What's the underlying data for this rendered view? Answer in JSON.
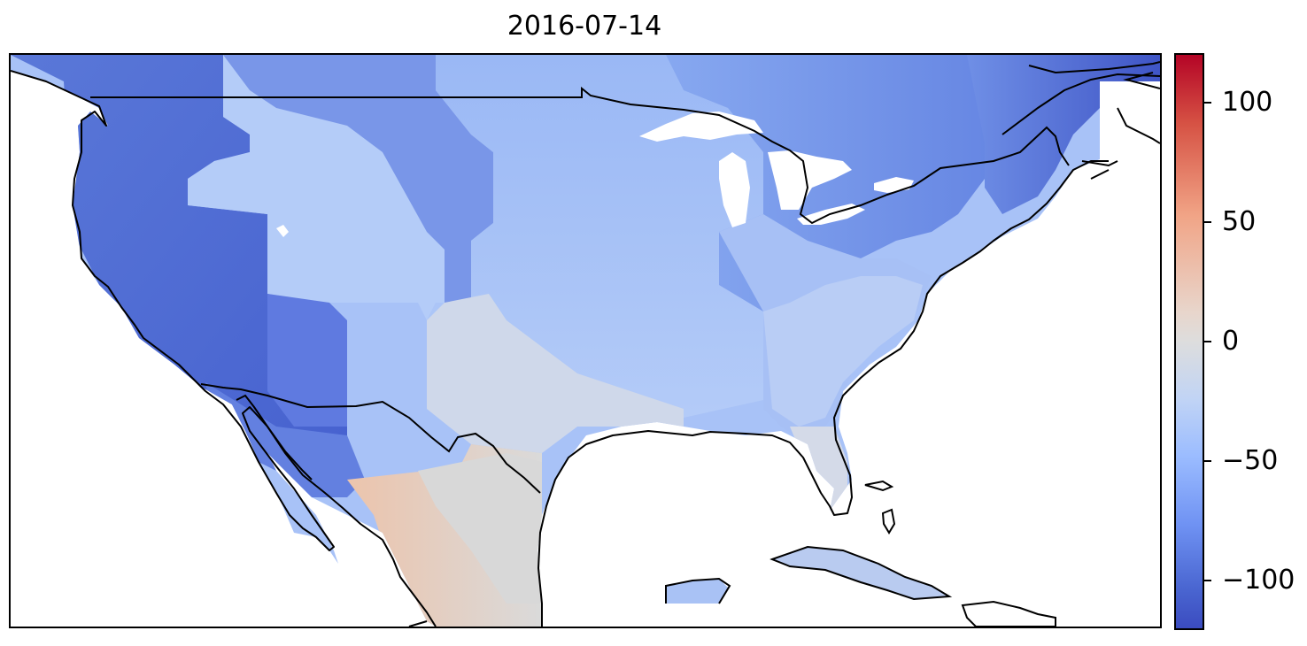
{
  "title": "2016-07-14",
  "colorbar": {
    "colormap": "coolwarm",
    "min": -120,
    "max": 120,
    "ticks": [
      {
        "value": 100,
        "label": "100"
      },
      {
        "value": 50,
        "label": "50"
      },
      {
        "value": 0,
        "label": "0"
      },
      {
        "value": -50,
        "label": "−50"
      },
      {
        "value": -100,
        "label": "−100"
      }
    ],
    "colors": {
      "low": "#3b4cc0",
      "mid": "#dddddd",
      "high": "#b40426"
    }
  },
  "map": {
    "projection": "PlateCarree",
    "extent_lon": [
      -127,
      -60
    ],
    "extent_lat": [
      17,
      51
    ],
    "features": [
      "coastline",
      "country-borders",
      "lakes"
    ]
  }
}
